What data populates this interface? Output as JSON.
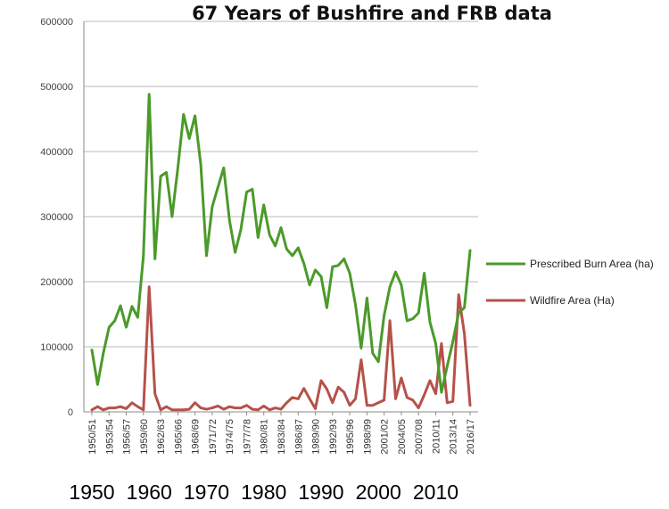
{
  "chart_data": {
    "type": "line",
    "title": "67 Years of Bushfire and FRB data",
    "ylim": [
      0,
      600000
    ],
    "y_ticks": [
      "0",
      "100000",
      "200000",
      "300000",
      "400000",
      "500000",
      "600000"
    ],
    "x_tick_labels": [
      "1950/51",
      "1953/54",
      "1956/57",
      "1959/60",
      "1962/63",
      "1965/66",
      "1968/69",
      "1971/72",
      "1974/75",
      "1977/78",
      "1980/81",
      "1983/84",
      "1986/87",
      "1989/90",
      "1992/93",
      "1995/96",
      "1998/99",
      "2001/02",
      "2004/05",
      "2007/08",
      "2010/11",
      "2013/14",
      "2016/17"
    ],
    "decade_labels": [
      "1950",
      "1960",
      "1970",
      "1980",
      "1990",
      "2000",
      "2010"
    ],
    "categories": [
      "1950/51",
      "1951/52",
      "1952/53",
      "1953/54",
      "1954/55",
      "1955/56",
      "1956/57",
      "1957/58",
      "1958/59",
      "1959/60",
      "1960/61",
      "1961/62",
      "1962/63",
      "1963/64",
      "1964/65",
      "1965/66",
      "1966/67",
      "1967/68",
      "1968/69",
      "1969/70",
      "1970/71",
      "1971/72",
      "1972/73",
      "1973/74",
      "1974/75",
      "1975/76",
      "1976/77",
      "1977/78",
      "1978/79",
      "1979/80",
      "1980/81",
      "1981/82",
      "1982/83",
      "1983/84",
      "1984/85",
      "1985/86",
      "1986/87",
      "1987/88",
      "1988/89",
      "1989/90",
      "1990/91",
      "1991/92",
      "1992/93",
      "1993/94",
      "1994/95",
      "1995/96",
      "1996/97",
      "1997/98",
      "1998/99",
      "1999/00",
      "2000/01",
      "2001/02",
      "2002/03",
      "2003/04",
      "2004/05",
      "2005/06",
      "2006/07",
      "2007/08",
      "2008/09",
      "2009/10",
      "2010/11",
      "2011/12",
      "2012/13",
      "2013/14",
      "2014/15",
      "2015/16",
      "2016/17"
    ],
    "series": [
      {
        "name": "Prescribed Burn Area (ha)",
        "color": "#4b9a2a",
        "values": [
          95000,
          42000,
          90000,
          130000,
          140000,
          163000,
          130000,
          162000,
          145000,
          240000,
          488000,
          235000,
          362000,
          368000,
          300000,
          375000,
          457000,
          420000,
          455000,
          380000,
          240000,
          315000,
          345000,
          375000,
          295000,
          245000,
          280000,
          338000,
          342000,
          268000,
          318000,
          272000,
          255000,
          283000,
          250000,
          240000,
          252000,
          228000,
          195000,
          218000,
          208000,
          160000,
          223000,
          225000,
          235000,
          213000,
          165000,
          98000,
          175000,
          90000,
          77000,
          148000,
          192000,
          215000,
          195000,
          140000,
          143000,
          152000,
          213000,
          138000,
          105000,
          30000,
          70000,
          108000,
          152000,
          160000,
          248000
        ]
      },
      {
        "name": "Wildfire Area (Ha)",
        "color": "#b5524a",
        "values": [
          3000,
          8000,
          3000,
          6000,
          6000,
          8000,
          5000,
          14000,
          8000,
          3000,
          192000,
          28000,
          3000,
          8000,
          3000,
          3000,
          3000,
          4000,
          14000,
          6000,
          4000,
          6000,
          9000,
          4000,
          8000,
          6000,
          6000,
          10000,
          4000,
          3000,
          9000,
          3000,
          6000,
          4000,
          14000,
          22000,
          20000,
          36000,
          20000,
          5000,
          48000,
          35000,
          14000,
          38000,
          30000,
          10000,
          20000,
          80000,
          10000,
          10000,
          14000,
          18000,
          140000,
          20000,
          52000,
          22000,
          18000,
          6000,
          26000,
          48000,
          28000,
          105000,
          14000,
          16000,
          180000,
          120000,
          10000
        ]
      }
    ],
    "legend": "right"
  }
}
